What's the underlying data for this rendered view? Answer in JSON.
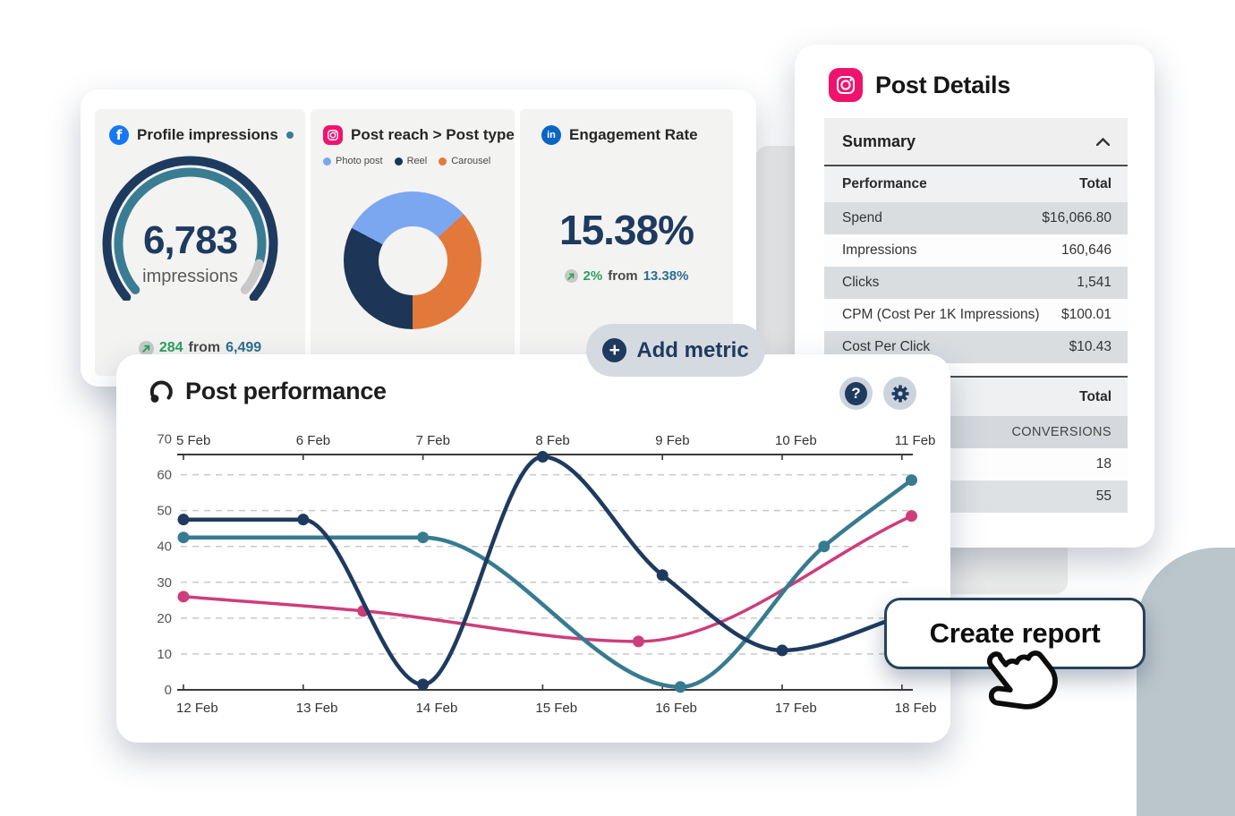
{
  "metrics_card": {
    "tiles": [
      {
        "id": "profile-impressions",
        "icon": "facebook",
        "title": "Profile impressions",
        "value": "6,783",
        "value_label": "impressions",
        "delta": {
          "amount": "284",
          "from_label": "from",
          "previous": "6,499"
        }
      },
      {
        "id": "post-reach",
        "icon": "instagram",
        "title": "Post reach > Post type",
        "legend": [
          {
            "label": "Photo post"
          },
          {
            "label": "Reel"
          },
          {
            "label": "Carousel"
          }
        ]
      },
      {
        "id": "engagement-rate",
        "icon": "linkedin",
        "title": "Engagement Rate",
        "value": "15.38%",
        "delta": {
          "amount": "2%",
          "from_label": "from",
          "previous": "13.38%"
        }
      }
    ]
  },
  "add_metric": {
    "label": "Add metric"
  },
  "post_performance": {
    "title": "Post performance"
  },
  "create_report": {
    "label": "Create report"
  },
  "post_details": {
    "title": "Post Details",
    "section_label": "Summary",
    "table1": {
      "header": [
        "Performance",
        "Total"
      ],
      "rows": [
        [
          "Spend",
          "$16,066.80"
        ],
        [
          "Impressions",
          "160,646"
        ],
        [
          "Clicks",
          "1,541"
        ],
        [
          "CPM (Cost Per 1K Impressions)",
          "$100.01"
        ],
        [
          "Cost Per Click",
          "$10.43"
        ]
      ]
    },
    "table2": {
      "header": "Total",
      "rows": [
        "CONVERSIONS",
        "18",
        "55"
      ]
    }
  },
  "colors": {
    "navy": "#1e3a5f",
    "teal_line": "#377b90",
    "pink_line": "#ce3d7b",
    "green": "#2e9e5e",
    "teal_text": "#2e6e8e",
    "facebook": "#1877f2",
    "instagram": "#f0136e",
    "linkedin": "#0a66c2"
  },
  "chart_data": [
    {
      "type": "line",
      "title": "Post performance",
      "x_axis_top": {
        "labels": [
          "5 Feb",
          "6 Feb",
          "7 Feb",
          "8 Feb",
          "9 Feb",
          "10 Feb",
          "11 Feb"
        ]
      },
      "x_axis_bottom": {
        "labels": [
          "12 Feb",
          "13 Feb",
          "14 Feb",
          "15 Feb",
          "16 Feb",
          "17 Feb",
          "18 Feb"
        ]
      },
      "y_axis": {
        "ticks": [
          0,
          10,
          20,
          30,
          40,
          50,
          60,
          70
        ],
        "range": [
          0,
          70
        ]
      },
      "grid": "dashed-horizontal",
      "legend_position": "none",
      "series": [
        {
          "name": "navy-series",
          "color": "#1e3a5f",
          "width": 4.5,
          "points": [
            [
              0,
              47.5
            ],
            [
              1,
              47.5
            ],
            [
              2,
              1.5
            ],
            [
              3,
              65
            ],
            [
              4,
              32
            ],
            [
              5,
              11
            ],
            [
              6.08,
              21.5
            ]
          ],
          "marker_points": [
            0,
            1,
            2,
            3,
            4,
            5
          ]
        },
        {
          "name": "teal-series",
          "color": "#377b90",
          "width": 4.5,
          "points": [
            [
              0,
              42.5
            ],
            [
              2,
              42.5
            ],
            [
              4.15,
              0.8
            ],
            [
              5.35,
              40
            ],
            [
              6.08,
              58.5
            ]
          ],
          "marker_points": [
            0,
            1,
            2,
            3,
            4
          ]
        },
        {
          "name": "pink-series",
          "color": "#ce3d7b",
          "width": 3.5,
          "points": [
            [
              0,
              26
            ],
            [
              1.5,
              22
            ],
            [
              3.8,
              13.5
            ],
            [
              6.08,
              48.5
            ]
          ],
          "marker_points": [
            0,
            1,
            2,
            3
          ]
        }
      ]
    },
    {
      "type": "pie",
      "donut": true,
      "title": "Post reach > Post type",
      "labels": [
        "Photo post",
        "Reel",
        "Carousel"
      ],
      "values": [
        30.5,
        32.8,
        36.7
      ],
      "colors": [
        "#7ba7f0",
        "#1d3557",
        "#e2793b"
      ]
    },
    {
      "type": "gauge",
      "value": "6,783",
      "label": "impressions",
      "percent": 0.9,
      "colors": {
        "outer": "#1e3a5f",
        "progress": "#3a7d92",
        "remainder": "#c8c8c8"
      }
    }
  ]
}
